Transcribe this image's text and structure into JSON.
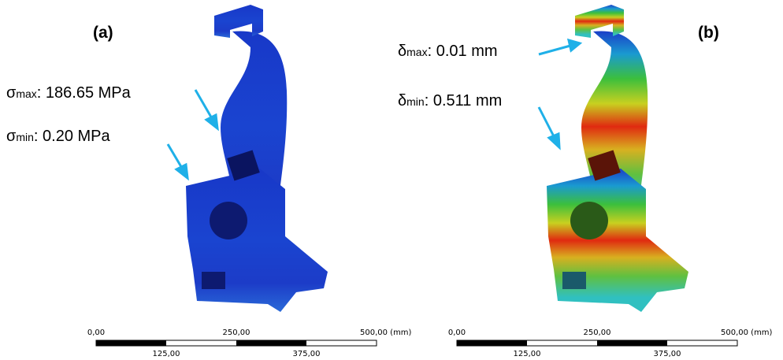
{
  "panels": [
    {
      "label": "(a)",
      "annotations": [
        {
          "symbol": "σ",
          "subscript": "max",
          "text": ": 186.65 MPa"
        },
        {
          "symbol": "σ",
          "subscript": "min",
          "text": ": 0.20 MPa"
        }
      ],
      "scale_bar": {
        "top": [
          "0,00",
          "250,00",
          "500,00 (mm)"
        ],
        "bottom": [
          "125,00",
          "375,00"
        ]
      }
    },
    {
      "label": "(b)",
      "annotations": [
        {
          "symbol": "δ",
          "subscript": "max",
          "text": ": 0.01 mm"
        },
        {
          "symbol": "δ",
          "subscript": "min",
          "text": ": 0.511 mm"
        }
      ],
      "scale_bar": {
        "top": [
          "0,00",
          "250,00",
          "500,00 (mm)"
        ],
        "bottom": [
          "125,00",
          "375,00"
        ]
      }
    }
  ]
}
